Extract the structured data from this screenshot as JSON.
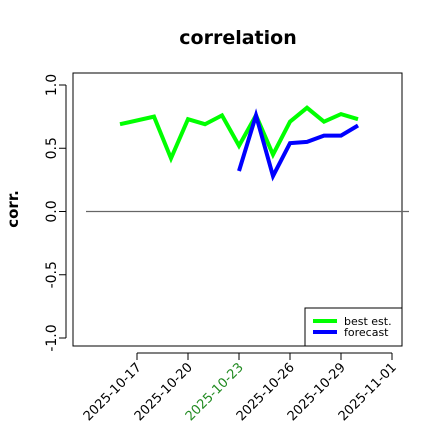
{
  "chart_data": {
    "type": "line",
    "title": "correlation",
    "ylabel": "corr.",
    "xlabel": "",
    "ylim": [
      -1.0,
      1.0
    ],
    "yticks": [
      -1.0,
      -0.5,
      0.0,
      0.5,
      1.0
    ],
    "ytick_labels": [
      "-1.0",
      "-0.5",
      "0.0",
      "0.5",
      "1.0"
    ],
    "x": [
      "2025-10-14",
      "2025-10-15",
      "2025-10-16",
      "2025-10-17",
      "2025-10-18",
      "2025-10-19",
      "2025-10-20",
      "2025-10-21",
      "2025-10-22",
      "2025-10-23",
      "2025-10-24",
      "2025-10-25",
      "2025-10-26",
      "2025-10-27",
      "2025-10-28",
      "2025-10-29",
      "2025-10-30",
      "2025-10-31",
      "2025-11-01",
      "2025-11-02"
    ],
    "xticks": [
      {
        "date": "2025-10-17",
        "label": "2025-10-17",
        "color": "#000000"
      },
      {
        "date": "2025-10-20",
        "label": "2025-10-20",
        "color": "#000000"
      },
      {
        "date": "2025-10-23",
        "label": "2025-10-23",
        "color": "#228b22"
      },
      {
        "date": "2025-10-26",
        "label": "2025-10-26",
        "color": "#000000"
      },
      {
        "date": "2025-10-29",
        "label": "2025-10-29",
        "color": "#000000"
      },
      {
        "date": "2025-11-01",
        "label": "2025-11-01",
        "color": "#000000"
      }
    ],
    "series": [
      {
        "name": "best est.",
        "color": "#00ff00",
        "x": [
          "2025-10-16",
          "2025-10-18",
          "2025-10-19",
          "2025-10-20",
          "2025-10-21",
          "2025-10-22",
          "2025-10-23",
          "2025-10-24",
          "2025-10-25",
          "2025-10-26",
          "2025-10-27",
          "2025-10-28",
          "2025-10-29",
          "2025-10-30"
        ],
        "values": [
          0.69,
          0.75,
          0.42,
          0.73,
          0.69,
          0.76,
          0.52,
          0.76,
          0.45,
          0.71,
          0.82,
          0.71,
          0.77,
          0.73
        ]
      },
      {
        "name": "forecast",
        "color": "#0000ff",
        "x": [
          "2025-10-23",
          "2025-10-24",
          "2025-10-25",
          "2025-10-26",
          "2025-10-27",
          "2025-10-28",
          "2025-10-29",
          "2025-10-30"
        ],
        "values": [
          0.32,
          0.76,
          0.28,
          0.54,
          0.55,
          0.6,
          0.6,
          0.68
        ]
      }
    ],
    "reference_line": {
      "y": 0.0,
      "color": "#666666"
    },
    "legend": {
      "placement": "bottom-right"
    },
    "grid": false
  }
}
